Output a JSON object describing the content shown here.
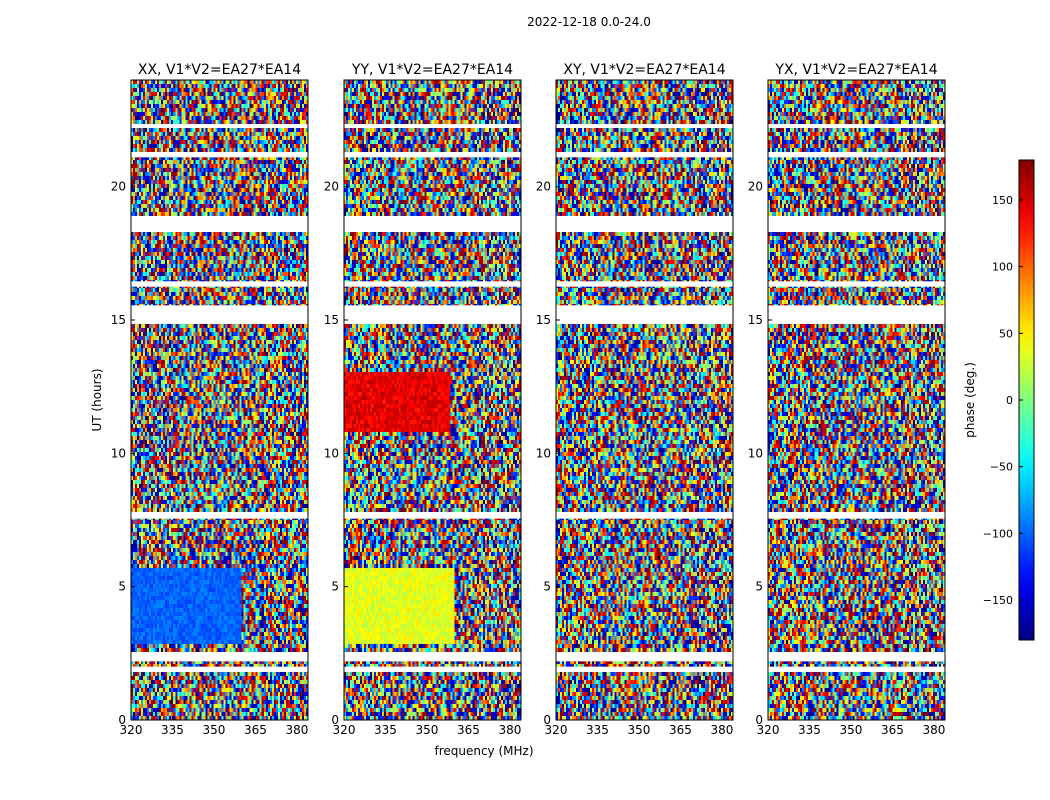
{
  "figure": {
    "suptitle": "2022-12-18 0.0-24.0",
    "ylabel": "UT (hours)",
    "xlabel": "frequency (MHz)"
  },
  "chart_data": {
    "type": "heatmap",
    "x_ticks": [
      320,
      335,
      350,
      365,
      380
    ],
    "y_ticks": [
      0,
      5,
      10,
      15,
      20
    ],
    "xlim": [
      320,
      384
    ],
    "ylim": [
      0,
      24
    ],
    "panels": [
      {
        "id": "xx",
        "title": "XX, V1*V2=EA27*EA14"
      },
      {
        "id": "yy",
        "title": "YY, V1*V2=EA27*EA14"
      },
      {
        "id": "xy",
        "title": "XY, V1*V2=EA27*EA14"
      },
      {
        "id": "yx",
        "title": "YX, V1*V2=EA27*EA14"
      }
    ],
    "blank_time_ranges": [
      [
        14.85,
        15.55
      ],
      [
        2.55,
        2.2
      ],
      [
        2.0,
        1.8
      ],
      [
        18.3,
        18.9
      ],
      [
        7.55,
        7.8
      ],
      [
        16.25,
        16.45
      ],
      [
        21.1,
        21.3
      ],
      [
        22.2,
        22.35
      ]
    ],
    "colorbar": {
      "label": "phase (deg.)",
      "range": [
        -180,
        180
      ],
      "ticks": [
        -150,
        -100,
        -50,
        0,
        50,
        100,
        150
      ],
      "colormap": "jet"
    }
  }
}
